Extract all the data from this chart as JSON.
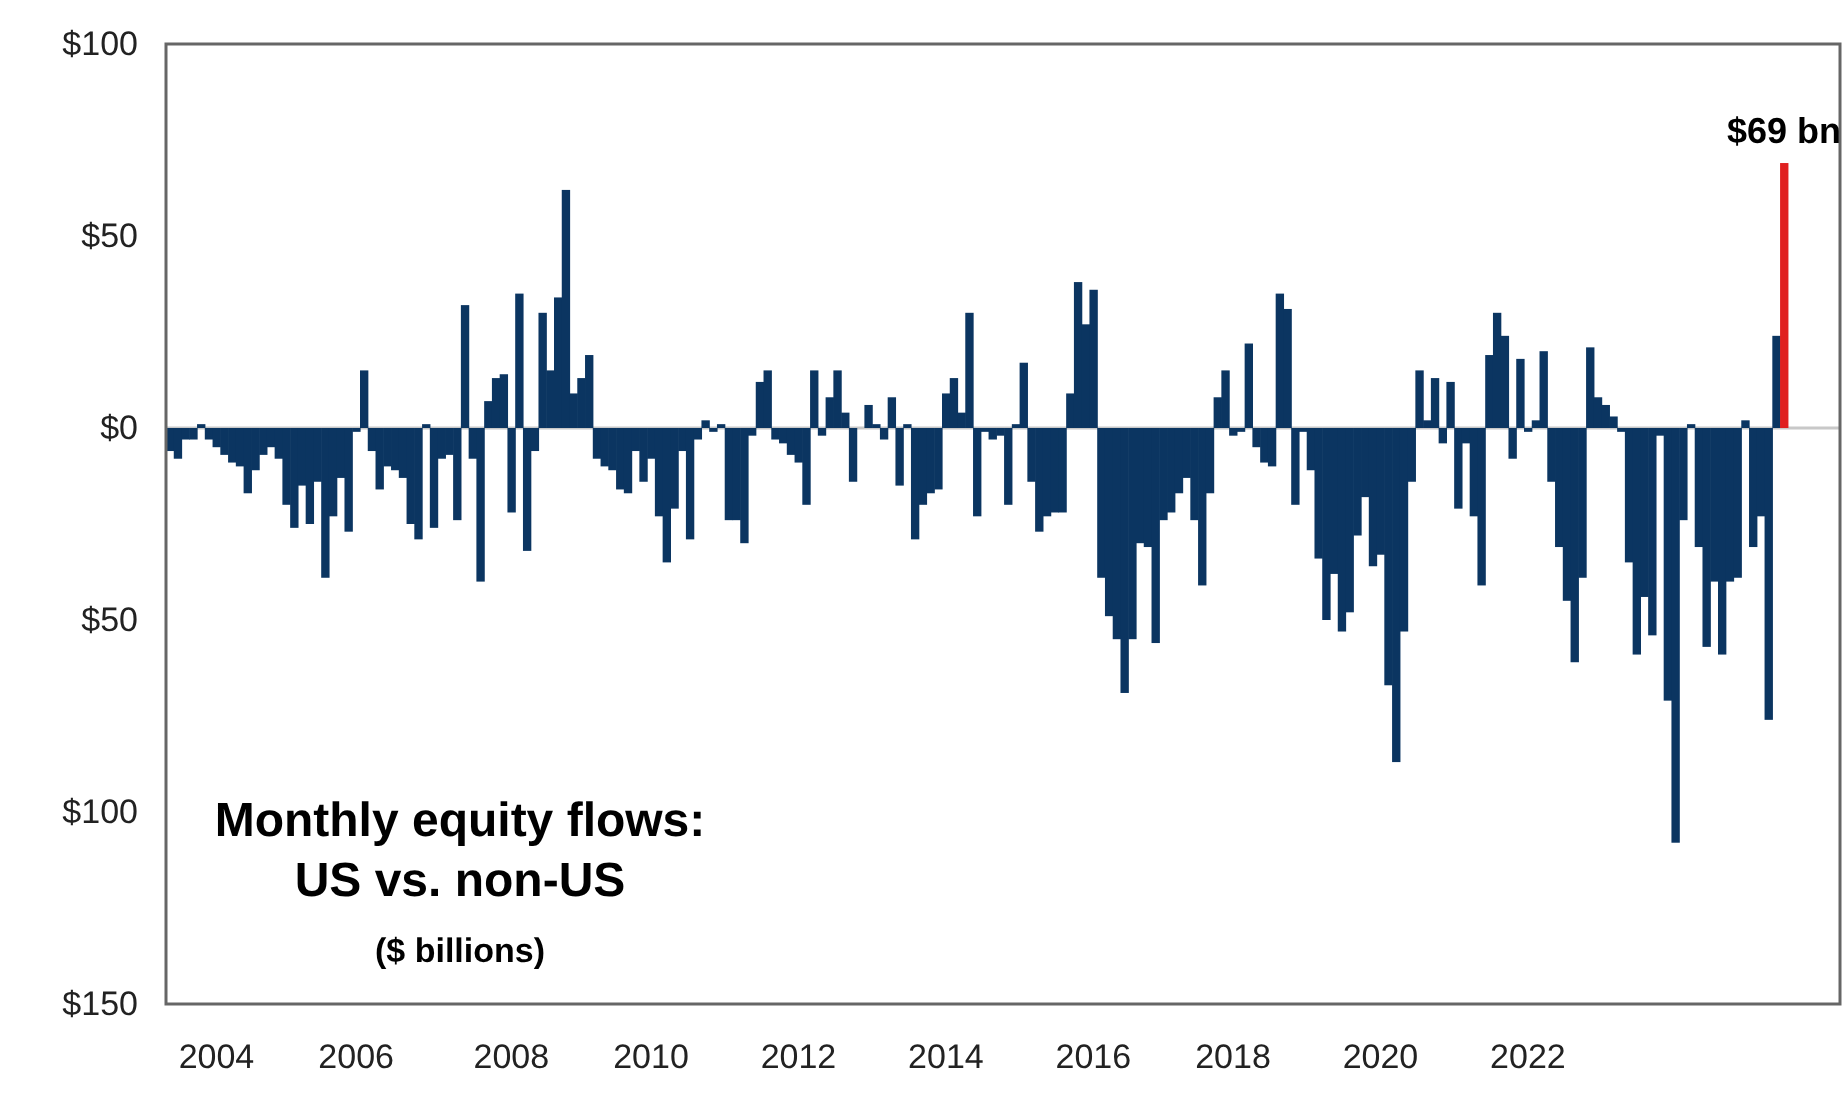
{
  "chart_data": {
    "type": "bar",
    "title": "Monthly equity flows: US vs. non-US",
    "subtitle": "($ billions)",
    "categories": [
      null,
      null,
      null,
      null,
      null,
      null,
      "2004",
      null,
      null,
      null,
      null,
      null,
      null,
      null,
      null,
      null,
      null,
      null,
      null,
      null,
      null,
      null,
      null,
      null,
      "2006",
      null,
      null,
      null,
      null,
      null,
      null,
      null,
      null,
      null,
      null,
      null,
      null,
      null,
      null,
      null,
      null,
      null,
      null,
      null,
      "2008",
      null,
      null,
      null,
      null,
      null,
      null,
      null,
      null,
      null,
      null,
      null,
      null,
      null,
      null,
      null,
      null,
      null,
      "2010",
      null,
      null,
      null,
      null,
      null,
      null,
      null,
      null,
      null,
      null,
      null,
      null,
      null,
      null,
      null,
      null,
      null,
      null,
      "2012",
      null,
      null,
      null,
      null,
      null,
      null,
      null,
      null,
      null,
      null,
      null,
      null,
      null,
      null,
      null,
      null,
      null,
      null,
      "2014",
      null,
      null,
      null,
      null,
      null,
      null,
      null,
      null,
      null,
      null,
      null,
      null,
      null,
      null,
      null,
      null,
      null,
      null,
      "2016",
      null,
      null,
      null,
      null,
      null,
      null,
      null,
      null,
      null,
      null,
      null,
      null,
      null,
      null,
      null,
      null,
      null,
      "2018",
      null,
      null,
      null,
      null,
      null,
      null,
      null,
      null,
      null,
      null,
      null,
      null,
      null,
      null,
      null,
      null,
      null,
      null,
      "2020",
      null,
      null,
      null,
      null,
      null,
      null,
      null,
      null,
      null,
      null,
      null,
      null,
      null,
      null,
      null,
      null,
      null,
      null,
      "2022",
      null,
      null,
      null,
      null,
      null,
      null,
      null,
      null,
      null,
      null,
      null,
      null,
      null,
      null,
      null,
      null,
      null,
      null,
      null,
      null,
      null,
      null,
      null,
      null,
      null,
      null,
      null,
      null,
      null,
      null,
      null,
      null,
      null
    ],
    "values": [
      -6,
      -8,
      -3,
      -3,
      1,
      -3,
      -5,
      -7,
      -9,
      -10,
      -17,
      -11,
      -7,
      -5,
      -8,
      -20,
      -26,
      -15,
      -25,
      -14,
      -39,
      -23,
      -13,
      -27,
      -1,
      15,
      -6,
      -16,
      -10,
      -11,
      -13,
      -25,
      -29,
      1,
      -26,
      -8,
      -7,
      -24,
      32,
      -8,
      -40,
      7,
      13,
      14,
      -22,
      35,
      -32,
      -6,
      30,
      15,
      34,
      62,
      9,
      13,
      19,
      -8,
      -10,
      -11,
      -16,
      -17,
      -6,
      -14,
      -8,
      -23,
      -35,
      -21,
      -6,
      -29,
      -3,
      2,
      -1,
      1,
      -24,
      -24,
      -30,
      -2,
      12,
      15,
      -3,
      -4,
      -7,
      -9,
      -20,
      15,
      -2,
      8,
      15,
      4,
      -14,
      0,
      6,
      1,
      -3,
      8,
      -15,
      1,
      -29,
      -20,
      -17,
      -16,
      9,
      13,
      4,
      30,
      -23,
      -1,
      -3,
      -2,
      -20,
      1,
      17,
      -14,
      -27,
      -23,
      -22,
      -22,
      9,
      38,
      27,
      36,
      -39,
      -49,
      -55,
      -69,
      -55,
      -30,
      -31,
      -56,
      -24,
      -22,
      -17,
      -13,
      -24,
      -41,
      -17,
      8,
      15,
      -2,
      -1,
      22,
      -5,
      -9,
      -10,
      35,
      31,
      -20,
      -1,
      -11,
      -34,
      -50,
      -38,
      -53,
      -48,
      -28,
      -18,
      -36,
      -33,
      -67,
      -87,
      -53,
      -14,
      15,
      2,
      13,
      -4,
      12,
      -21,
      -4,
      -23,
      -41,
      19,
      30,
      24,
      -8,
      18,
      -1,
      2,
      20,
      -14,
      -31,
      -45,
      -61,
      -39,
      21,
      8,
      6,
      3,
      -1,
      -35,
      -59,
      -44,
      -54,
      -2,
      -71,
      -108,
      -24,
      1,
      -31,
      -57,
      -40,
      -59,
      -40,
      -39,
      2,
      -31,
      -23,
      -76,
      24,
      69
    ],
    "colors": [
      "#0b3561",
      "#0b3561",
      "#0b3561",
      "#0b3561",
      "#0b3561",
      "#0b3561",
      "#0b3561",
      "#0b3561",
      "#0b3561",
      "#0b3561",
      "#0b3561",
      "#0b3561",
      "#0b3561",
      "#0b3561",
      "#0b3561",
      "#0b3561",
      "#0b3561",
      "#0b3561",
      "#0b3561",
      "#0b3561",
      "#0b3561",
      "#0b3561",
      "#0b3561",
      "#0b3561",
      "#0b3561",
      "#0b3561",
      "#0b3561",
      "#0b3561",
      "#0b3561",
      "#0b3561",
      "#0b3561",
      "#0b3561",
      "#0b3561",
      "#0b3561",
      "#0b3561",
      "#0b3561",
      "#0b3561",
      "#0b3561",
      "#0b3561",
      "#0b3561",
      "#0b3561",
      "#0b3561",
      "#0b3561",
      "#0b3561",
      "#0b3561",
      "#0b3561",
      "#0b3561",
      "#0b3561",
      "#0b3561",
      "#0b3561",
      "#0b3561",
      "#0b3561",
      "#0b3561",
      "#0b3561",
      "#0b3561",
      "#0b3561",
      "#0b3561",
      "#0b3561",
      "#0b3561",
      "#0b3561",
      "#0b3561",
      "#0b3561",
      "#0b3561",
      "#0b3561",
      "#0b3561",
      "#0b3561",
      "#0b3561",
      "#0b3561",
      "#0b3561",
      "#0b3561",
      "#0b3561",
      "#0b3561",
      "#0b3561",
      "#0b3561",
      "#0b3561",
      "#0b3561",
      "#0b3561",
      "#0b3561",
      "#0b3561",
      "#0b3561",
      "#0b3561",
      "#0b3561",
      "#0b3561",
      "#0b3561",
      "#0b3561",
      "#0b3561",
      "#0b3561",
      "#0b3561",
      "#0b3561",
      "#0b3561",
      "#0b3561",
      "#0b3561",
      "#0b3561",
      "#0b3561",
      "#0b3561",
      "#0b3561",
      "#0b3561",
      "#0b3561",
      "#0b3561",
      "#0b3561",
      "#0b3561",
      "#0b3561",
      "#0b3561",
      "#0b3561",
      "#0b3561",
      "#0b3561",
      "#0b3561",
      "#0b3561",
      "#0b3561",
      "#0b3561",
      "#0b3561",
      "#0b3561",
      "#0b3561",
      "#0b3561",
      "#0b3561",
      "#0b3561",
      "#0b3561",
      "#0b3561",
      "#0b3561",
      "#0b3561",
      "#0b3561",
      "#0b3561",
      "#0b3561",
      "#0b3561",
      "#0b3561",
      "#0b3561",
      "#0b3561",
      "#0b3561",
      "#0b3561",
      "#0b3561",
      "#0b3561",
      "#0b3561",
      "#0b3561",
      "#0b3561",
      "#0b3561",
      "#0b3561",
      "#0b3561",
      "#0b3561",
      "#0b3561",
      "#0b3561",
      "#0b3561",
      "#0b3561",
      "#0b3561",
      "#0b3561",
      "#0b3561",
      "#0b3561",
      "#0b3561",
      "#0b3561",
      "#0b3561",
      "#0b3561",
      "#0b3561",
      "#0b3561",
      "#0b3561",
      "#0b3561",
      "#0b3561",
      "#0b3561",
      "#0b3561",
      "#0b3561",
      "#0b3561",
      "#0b3561",
      "#0b3561",
      "#0b3561",
      "#0b3561",
      "#0b3561",
      "#0b3561",
      "#0b3561",
      "#0b3561",
      "#0b3561",
      "#0b3561",
      "#0b3561",
      "#0b3561",
      "#0b3561",
      "#0b3561",
      "#0b3561",
      "#0b3561",
      "#0b3561",
      "#0b3561",
      "#0b3561",
      "#0b3561",
      "#0b3561",
      "#0b3561",
      "#0b3561",
      "#0b3561",
      "#0b3561",
      "#0b3561",
      "#0b3561",
      "#0b3561",
      "#0b3561",
      "#0b3561",
      "#0b3561",
      "#0b3561",
      "#0b3561",
      "#0b3561",
      "#0b3561",
      "#0b3561",
      "#0b3561",
      "#0b3561",
      "#0b3561",
      "#0b3561",
      "#0b3561",
      "#0b3561",
      "#0b3561",
      "#0b3561",
      "#0b3561",
      "#0b3561",
      "#0b3561",
      "#0b3561",
      "#0b3561",
      "#e02020"
    ],
    "ylim": [
      -150,
      100
    ],
    "yticks": [
      {
        "value": 100,
        "label": "$100"
      },
      {
        "value": 50,
        "label": "$50"
      },
      {
        "value": 0,
        "label": "$0"
      },
      {
        "value": -50,
        "label": "$50"
      },
      {
        "value": -100,
        "label": "$100"
      },
      {
        "value": -150,
        "label": "$150"
      }
    ],
    "annotations": [
      {
        "text": "$69 bn",
        "y": 69
      }
    ]
  }
}
